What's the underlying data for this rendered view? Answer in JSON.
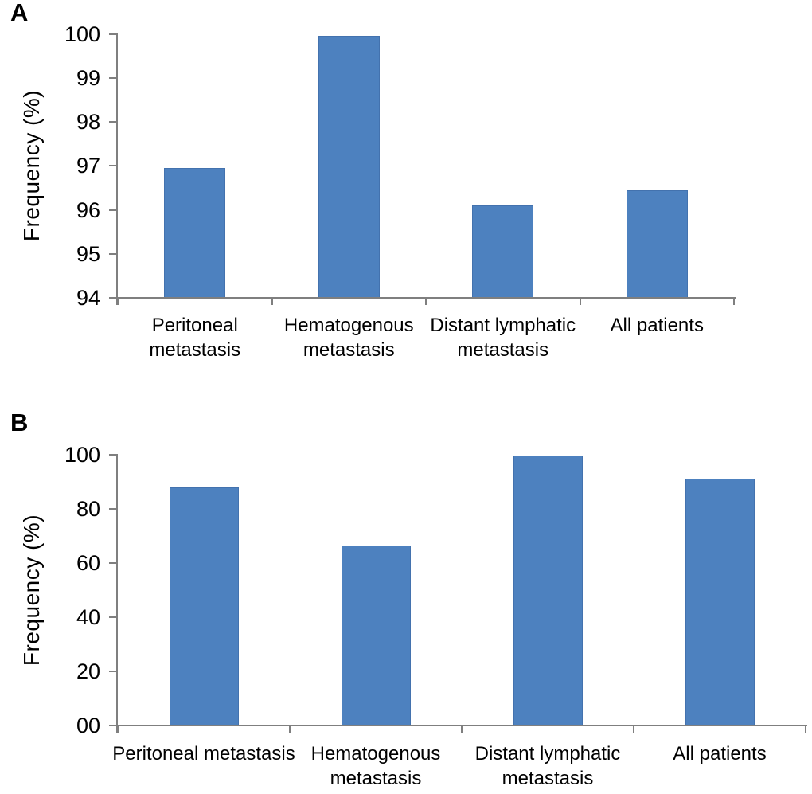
{
  "figure_type": "two-panel bar chart",
  "colors": {
    "bar_fill": "#4d81bf",
    "bar_border": "#4372ae",
    "axis": "#7f7f7f",
    "text": "#000000",
    "background": "#ffffff"
  },
  "chart_data": [
    {
      "type": "bar",
      "panel_label": "A",
      "title": "",
      "xlabel": "",
      "ylabel": "Frequency (%)",
      "categories": [
        "Peritoneal metastasis",
        "Hematogenous metastasis",
        "Distant lymphatic metastasis",
        "All patients"
      ],
      "values": [
        96.95,
        99.95,
        96.1,
        96.45
      ],
      "ylim": [
        94,
        100
      ],
      "yticks": [
        {
          "value": 94,
          "label": "94"
        },
        {
          "value": 95,
          "label": "95"
        },
        {
          "value": 96,
          "label": "96"
        },
        {
          "value": 97,
          "label": "97"
        },
        {
          "value": 98,
          "label": "98"
        },
        {
          "value": 99,
          "label": "99"
        },
        {
          "value": 100,
          "label": "100"
        }
      ],
      "grid": false,
      "legend": null
    },
    {
      "type": "bar",
      "panel_label": "B",
      "title": "",
      "xlabel": "",
      "ylabel": "Frequency (%)",
      "categories": [
        "Peritoneal metastasis",
        "Hematogenous metastasis",
        "Distant lymphatic metastasis",
        "All patients"
      ],
      "values": [
        88,
        66.5,
        99.7,
        91.2
      ],
      "ylim": [
        0,
        100
      ],
      "yticks": [
        {
          "value": 0,
          "label": "00"
        },
        {
          "value": 20,
          "label": "20"
        },
        {
          "value": 40,
          "label": "40"
        },
        {
          "value": 60,
          "label": "60"
        },
        {
          "value": 80,
          "label": "80"
        },
        {
          "value": 100,
          "label": "100"
        }
      ],
      "grid": false,
      "legend": null
    }
  ]
}
